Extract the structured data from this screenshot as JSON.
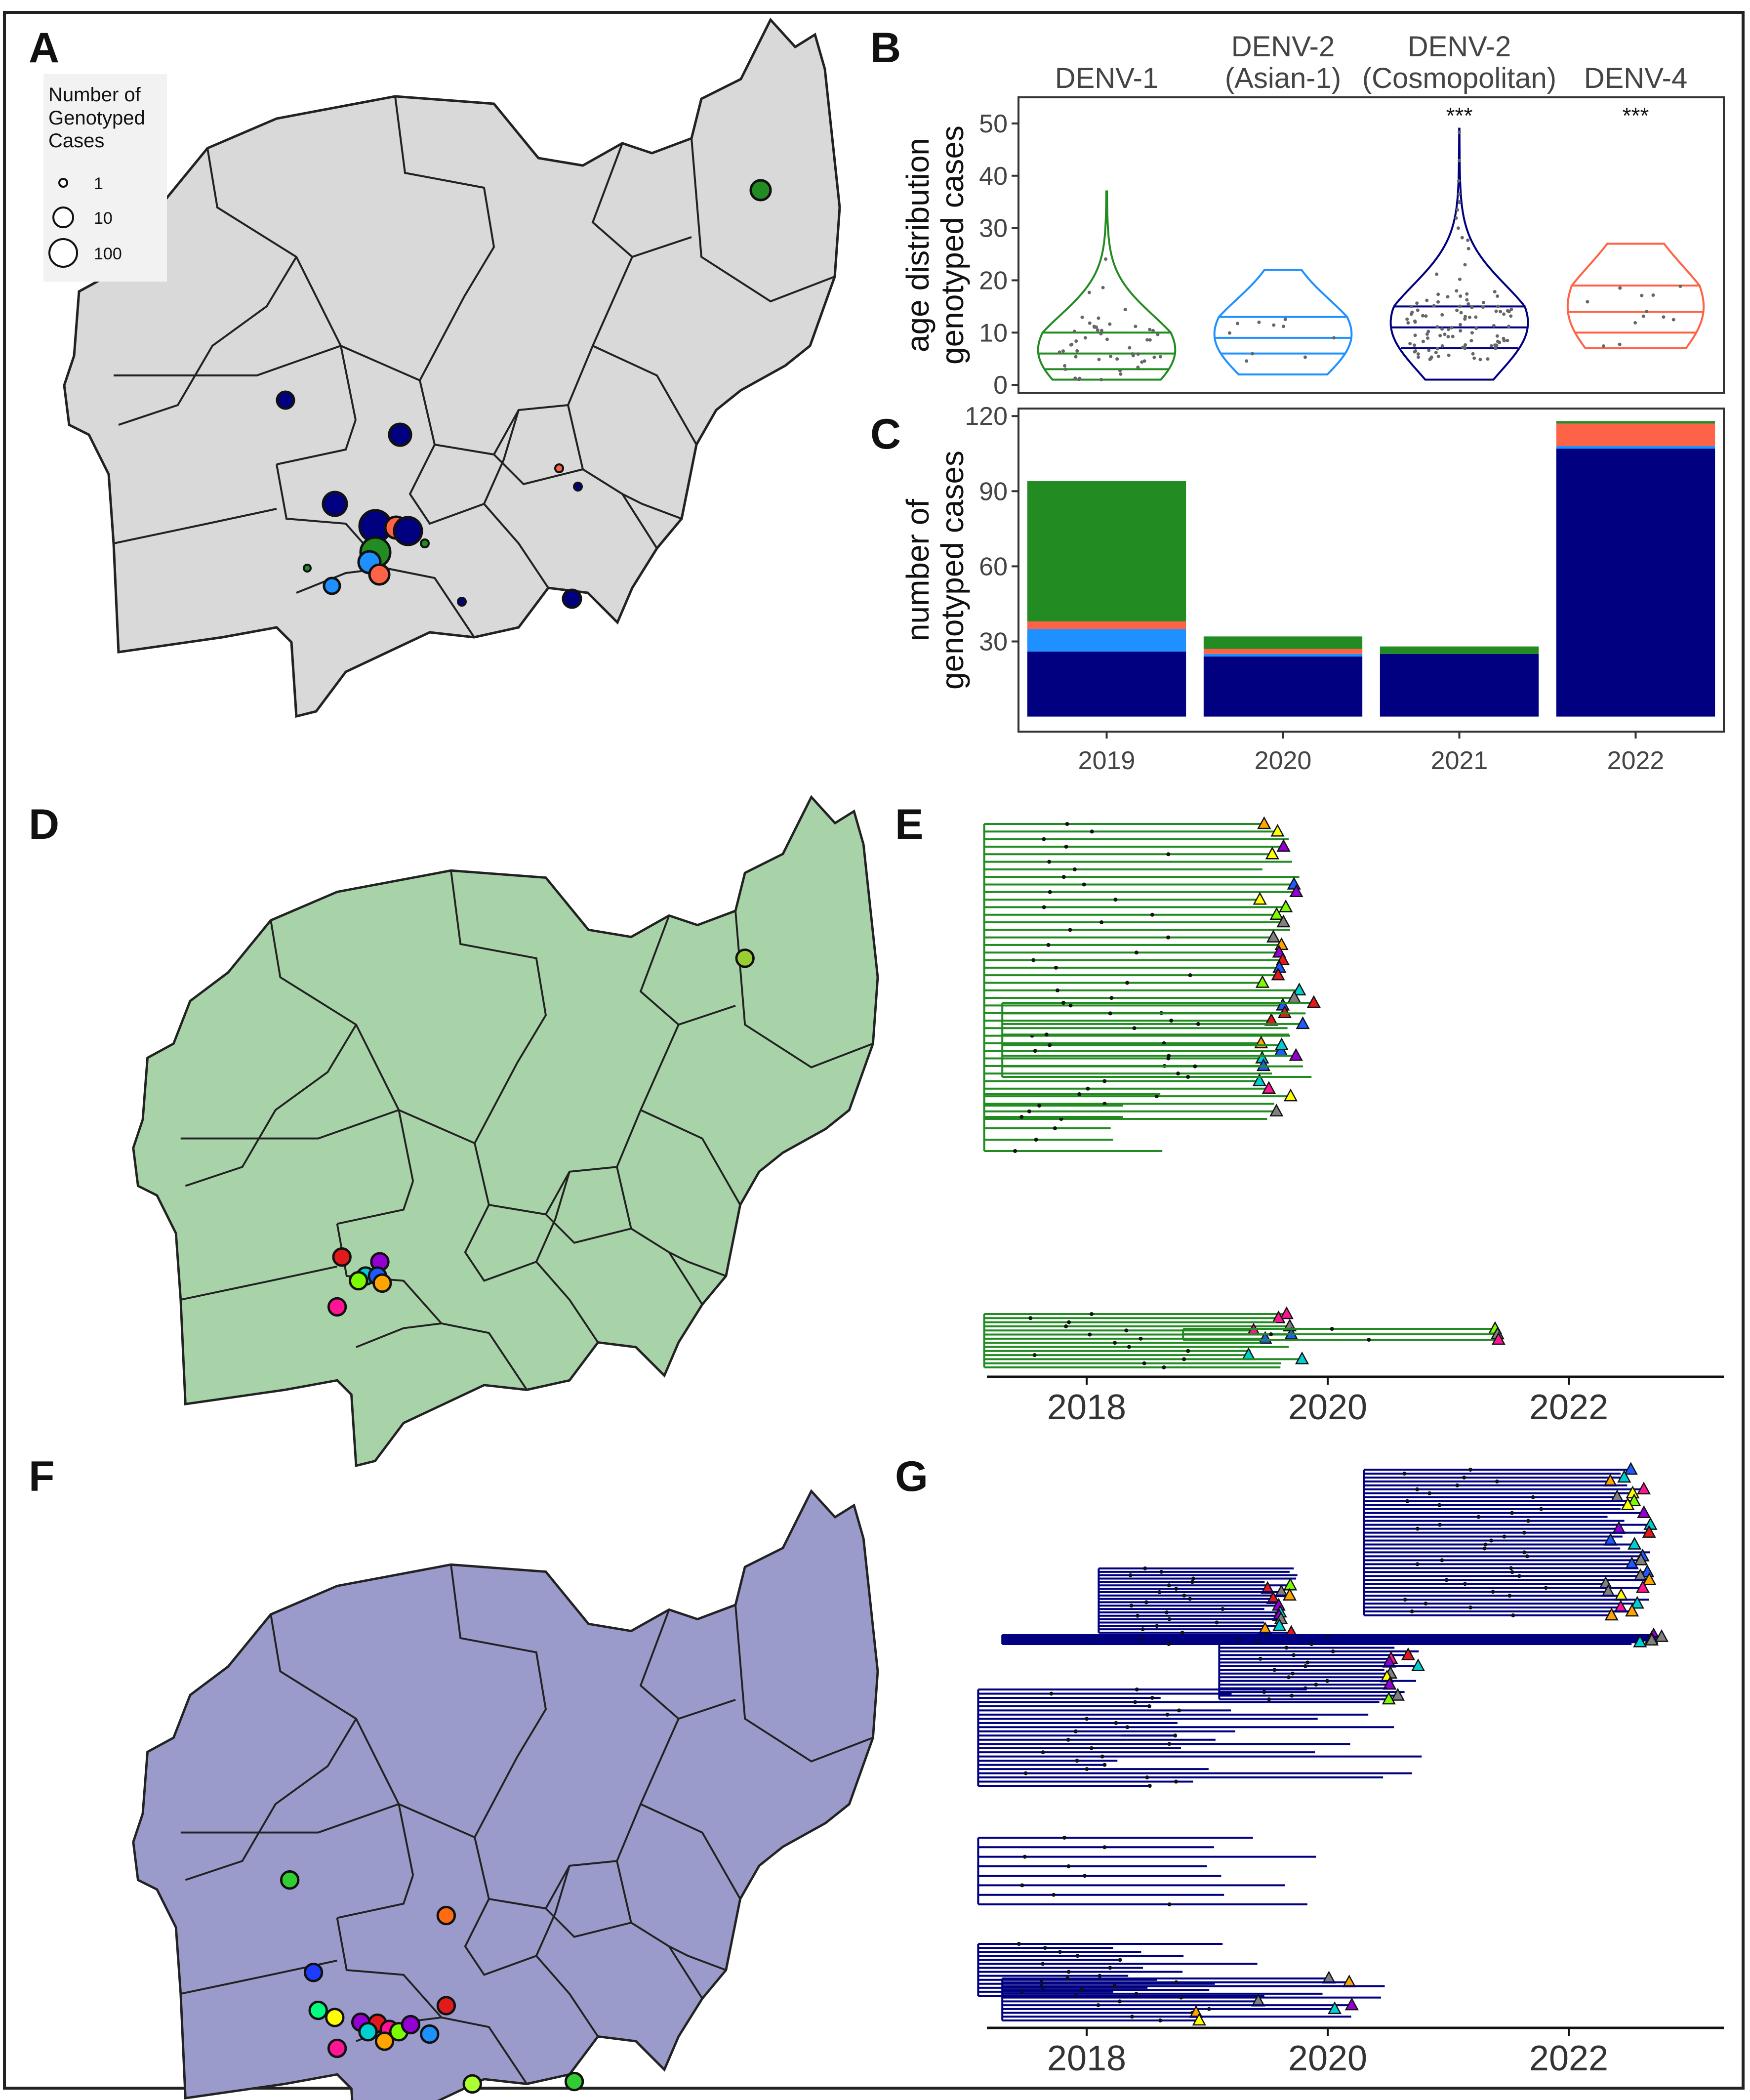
{
  "panel_labels": [
    "A",
    "B",
    "C",
    "D",
    "E",
    "F",
    "G"
  ],
  "map_a": {
    "legend_title": [
      "Number of",
      "Genotyped",
      "Cases"
    ],
    "legend_entries": [
      "1",
      "10",
      "100"
    ],
    "fill": "#d9d9d9"
  },
  "map_d": {
    "fill": "#a8d2a8"
  },
  "map_f": {
    "fill": "#9a9acb"
  },
  "serotype_colors": {
    "DENV-1": "#228B22",
    "DENV-2 (Asian-1)": "#1E90FF",
    "DENV-2 (Cosmopolitan)": "#000080",
    "DENV-4": "#FF6347"
  },
  "chart_data": [
    {
      "type": "violin",
      "panel": "B",
      "categories": [
        "DENV-1",
        "DENV-2\n(Asian-1)",
        "DENV-2\n(Cosmopolitan)",
        "DENV-4"
      ],
      "category_lines": [
        [
          "DENV-1"
        ],
        [
          "DENV-2",
          "(Asian-1)"
        ],
        [
          "DENV-2",
          "(Cosmopolitan)"
        ],
        [
          "DENV-4"
        ]
      ],
      "ylabel": [
        "age distribution",
        "genotyped cases"
      ],
      "ylim": [
        0,
        55
      ],
      "yticks": [
        0,
        10,
        20,
        30,
        40,
        50
      ],
      "quantiles": [
        [
          3,
          6,
          10
        ],
        [
          6,
          9,
          13
        ],
        [
          7,
          11,
          15
        ],
        [
          10,
          14,
          19
        ]
      ],
      "ranges": [
        [
          1,
          37
        ],
        [
          2,
          22
        ],
        [
          1,
          49
        ],
        [
          7,
          27
        ]
      ],
      "significance": [
        "",
        "",
        "***",
        "***"
      ]
    },
    {
      "type": "bar",
      "stacked": true,
      "panel": "C",
      "categories": [
        "2019",
        "2020",
        "2021",
        "2022"
      ],
      "ylabel": [
        "number of",
        "genotyped cases"
      ],
      "ylim": [
        0,
        120
      ],
      "yticks": [
        30,
        60,
        90,
        120
      ],
      "series": [
        {
          "name": "DENV-2 (Cosmopolitan)",
          "values": [
            26,
            24,
            25,
            107
          ]
        },
        {
          "name": "DENV-2 (Asian-1)",
          "values": [
            9,
            1,
            0,
            1
          ]
        },
        {
          "name": "DENV-4",
          "values": [
            3,
            2,
            0,
            9
          ]
        },
        {
          "name": "DENV-1",
          "values": [
            56,
            5,
            3,
            1
          ]
        }
      ]
    },
    {
      "type": "phylogeny",
      "panel": "E",
      "xticks": [
        "2018",
        "2020",
        "2022"
      ]
    },
    {
      "type": "phylogeny",
      "panel": "G",
      "xticks": [
        "2018",
        "2020",
        "2022"
      ]
    }
  ]
}
